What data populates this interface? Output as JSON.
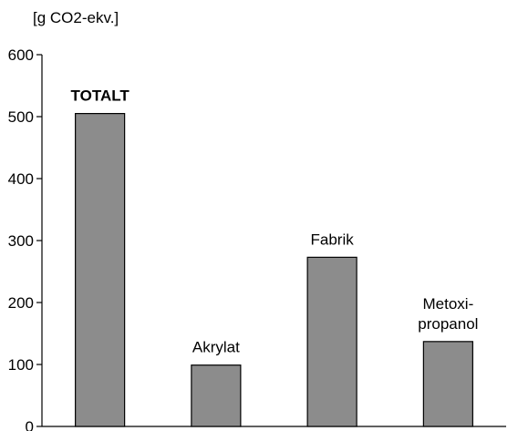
{
  "chart_data": {
    "type": "bar",
    "ylabel": "[g CO2-ekv.]",
    "ylim": [
      0,
      600
    ],
    "yticks": [
      0,
      100,
      200,
      300,
      400,
      500,
      600
    ],
    "grid": false,
    "legend": "none",
    "categories": [
      {
        "id": "totalt",
        "label_lines": [
          "TOTALT"
        ],
        "bold": true
      },
      {
        "id": "akrylat",
        "label_lines": [
          "Akrylat"
        ],
        "bold": false
      },
      {
        "id": "fabrik",
        "label_lines": [
          "Fabrik"
        ],
        "bold": false
      },
      {
        "id": "metoxipropanol",
        "label_lines": [
          "Metoxi-",
          "propanol"
        ],
        "bold": false
      }
    ],
    "values": [
      505,
      99,
      273,
      137
    ],
    "colors": {
      "bar_fill": "#8c8c8c",
      "bar_stroke": "#000000",
      "axis": "#000000"
    }
  }
}
